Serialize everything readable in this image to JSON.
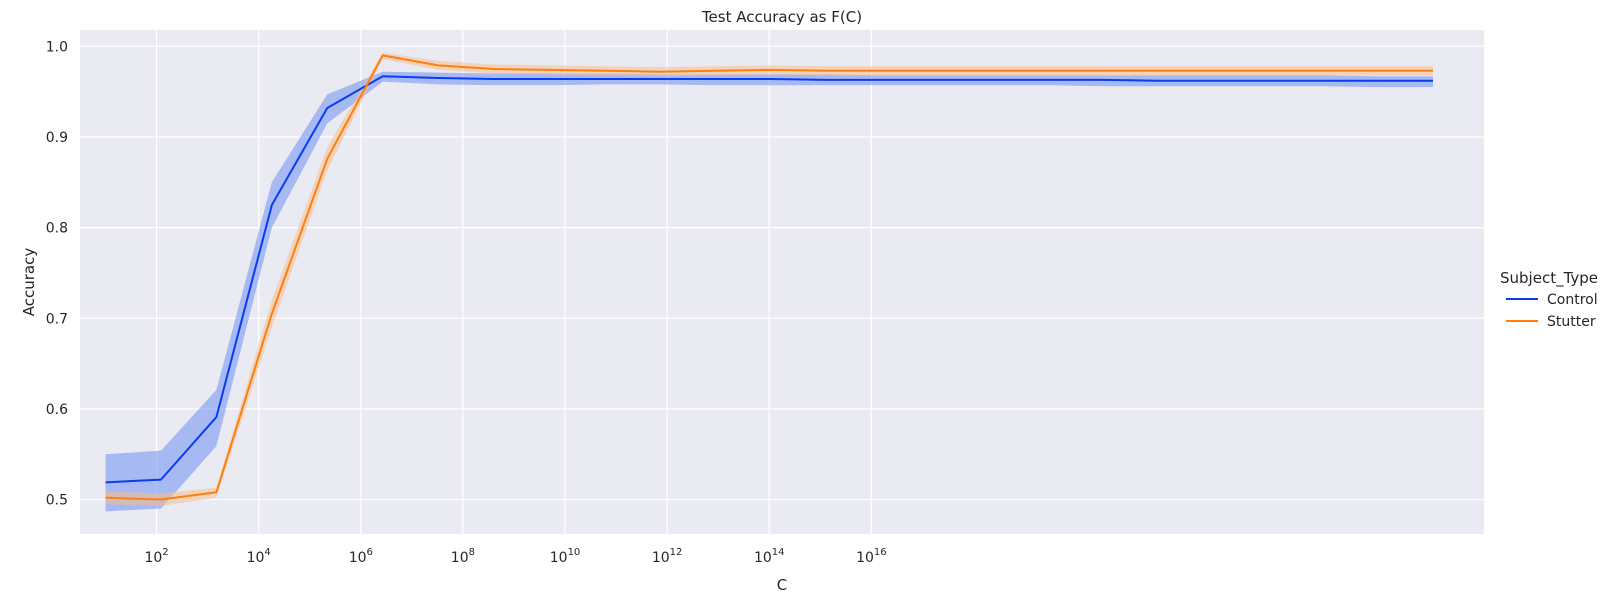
{
  "chart_data": {
    "type": "line",
    "title": "Test Accuracy as F(C)",
    "xlabel": "C",
    "ylabel": "Accuracy",
    "xscale": "log",
    "xlim": [
      0.5,
      28
    ],
    "ylim": [
      0.462,
      1.018
    ],
    "x_tick_exponents": [
      2,
      4,
      6,
      8,
      10,
      12,
      14,
      16
    ],
    "x_tick_labels": [
      "10",
      "10",
      "10",
      "10",
      "10",
      "10",
      "10",
      "10"
    ],
    "x_tick_superscripts": [
      "2",
      "4",
      "6",
      "8",
      "10",
      "12",
      "14",
      "16"
    ],
    "y_ticks": [
      0.5,
      0.6,
      0.7,
      0.8,
      0.9,
      1.0
    ],
    "y_tick_labels": [
      "0.5",
      "0.6",
      "0.7",
      "0.8",
      "0.9",
      "1.0"
    ],
    "grid": true,
    "background": "#eaeaf2",
    "legend": {
      "title": "Subject_Type",
      "position": "right"
    },
    "x_log10": [
      1.0,
      2.0859,
      3.1717,
      4.2576,
      5.3434,
      6.4293,
      7.5152,
      8.601,
      9.6869,
      10.7727,
      11.8586,
      12.9444,
      14.0303,
      15.1162,
      16.202,
      17.2879,
      18.3737,
      19.4596,
      20.5454,
      21.6313,
      22.7172,
      23.803,
      24.8889,
      25.9747,
      27.0
    ],
    "series": [
      {
        "name": "Control",
        "color": "#0a3cf0",
        "band_color": "#6f8ff2",
        "values": [
          0.519,
          0.522,
          0.591,
          0.825,
          0.932,
          0.967,
          0.965,
          0.964,
          0.964,
          0.964,
          0.964,
          0.964,
          0.964,
          0.963,
          0.963,
          0.963,
          0.963,
          0.963,
          0.963,
          0.962,
          0.962,
          0.962,
          0.962,
          0.962,
          0.962
        ],
        "lower": [
          0.487,
          0.49,
          0.559,
          0.8,
          0.915,
          0.961,
          0.958,
          0.957,
          0.957,
          0.958,
          0.958,
          0.957,
          0.957,
          0.957,
          0.957,
          0.957,
          0.957,
          0.957,
          0.956,
          0.956,
          0.956,
          0.956,
          0.956,
          0.955,
          0.955
        ],
        "upper": [
          0.55,
          0.554,
          0.621,
          0.85,
          0.947,
          0.972,
          0.971,
          0.97,
          0.97,
          0.97,
          0.969,
          0.969,
          0.969,
          0.969,
          0.968,
          0.968,
          0.968,
          0.968,
          0.968,
          0.968,
          0.968,
          0.968,
          0.968,
          0.967,
          0.967
        ]
      },
      {
        "name": "Stutter",
        "color": "#ff7f0e",
        "band_color": "#f6bd8e",
        "values": [
          0.502,
          0.5,
          0.508,
          0.705,
          0.876,
          0.99,
          0.979,
          0.975,
          0.974,
          0.973,
          0.972,
          0.973,
          0.974,
          0.973,
          0.973,
          0.973,
          0.973,
          0.973,
          0.973,
          0.973,
          0.973,
          0.973,
          0.973,
          0.973,
          0.973
        ],
        "lower": [
          0.495,
          0.493,
          0.502,
          0.69,
          0.863,
          0.986,
          0.974,
          0.97,
          0.969,
          0.968,
          0.967,
          0.968,
          0.969,
          0.968,
          0.968,
          0.968,
          0.968,
          0.968,
          0.968,
          0.968,
          0.968,
          0.968,
          0.968,
          0.968,
          0.968
        ],
        "upper": [
          0.509,
          0.507,
          0.513,
          0.72,
          0.889,
          0.993,
          0.984,
          0.98,
          0.979,
          0.978,
          0.977,
          0.978,
          0.979,
          0.978,
          0.978,
          0.978,
          0.978,
          0.978,
          0.978,
          0.978,
          0.978,
          0.978,
          0.978,
          0.978,
          0.978
        ]
      }
    ]
  }
}
